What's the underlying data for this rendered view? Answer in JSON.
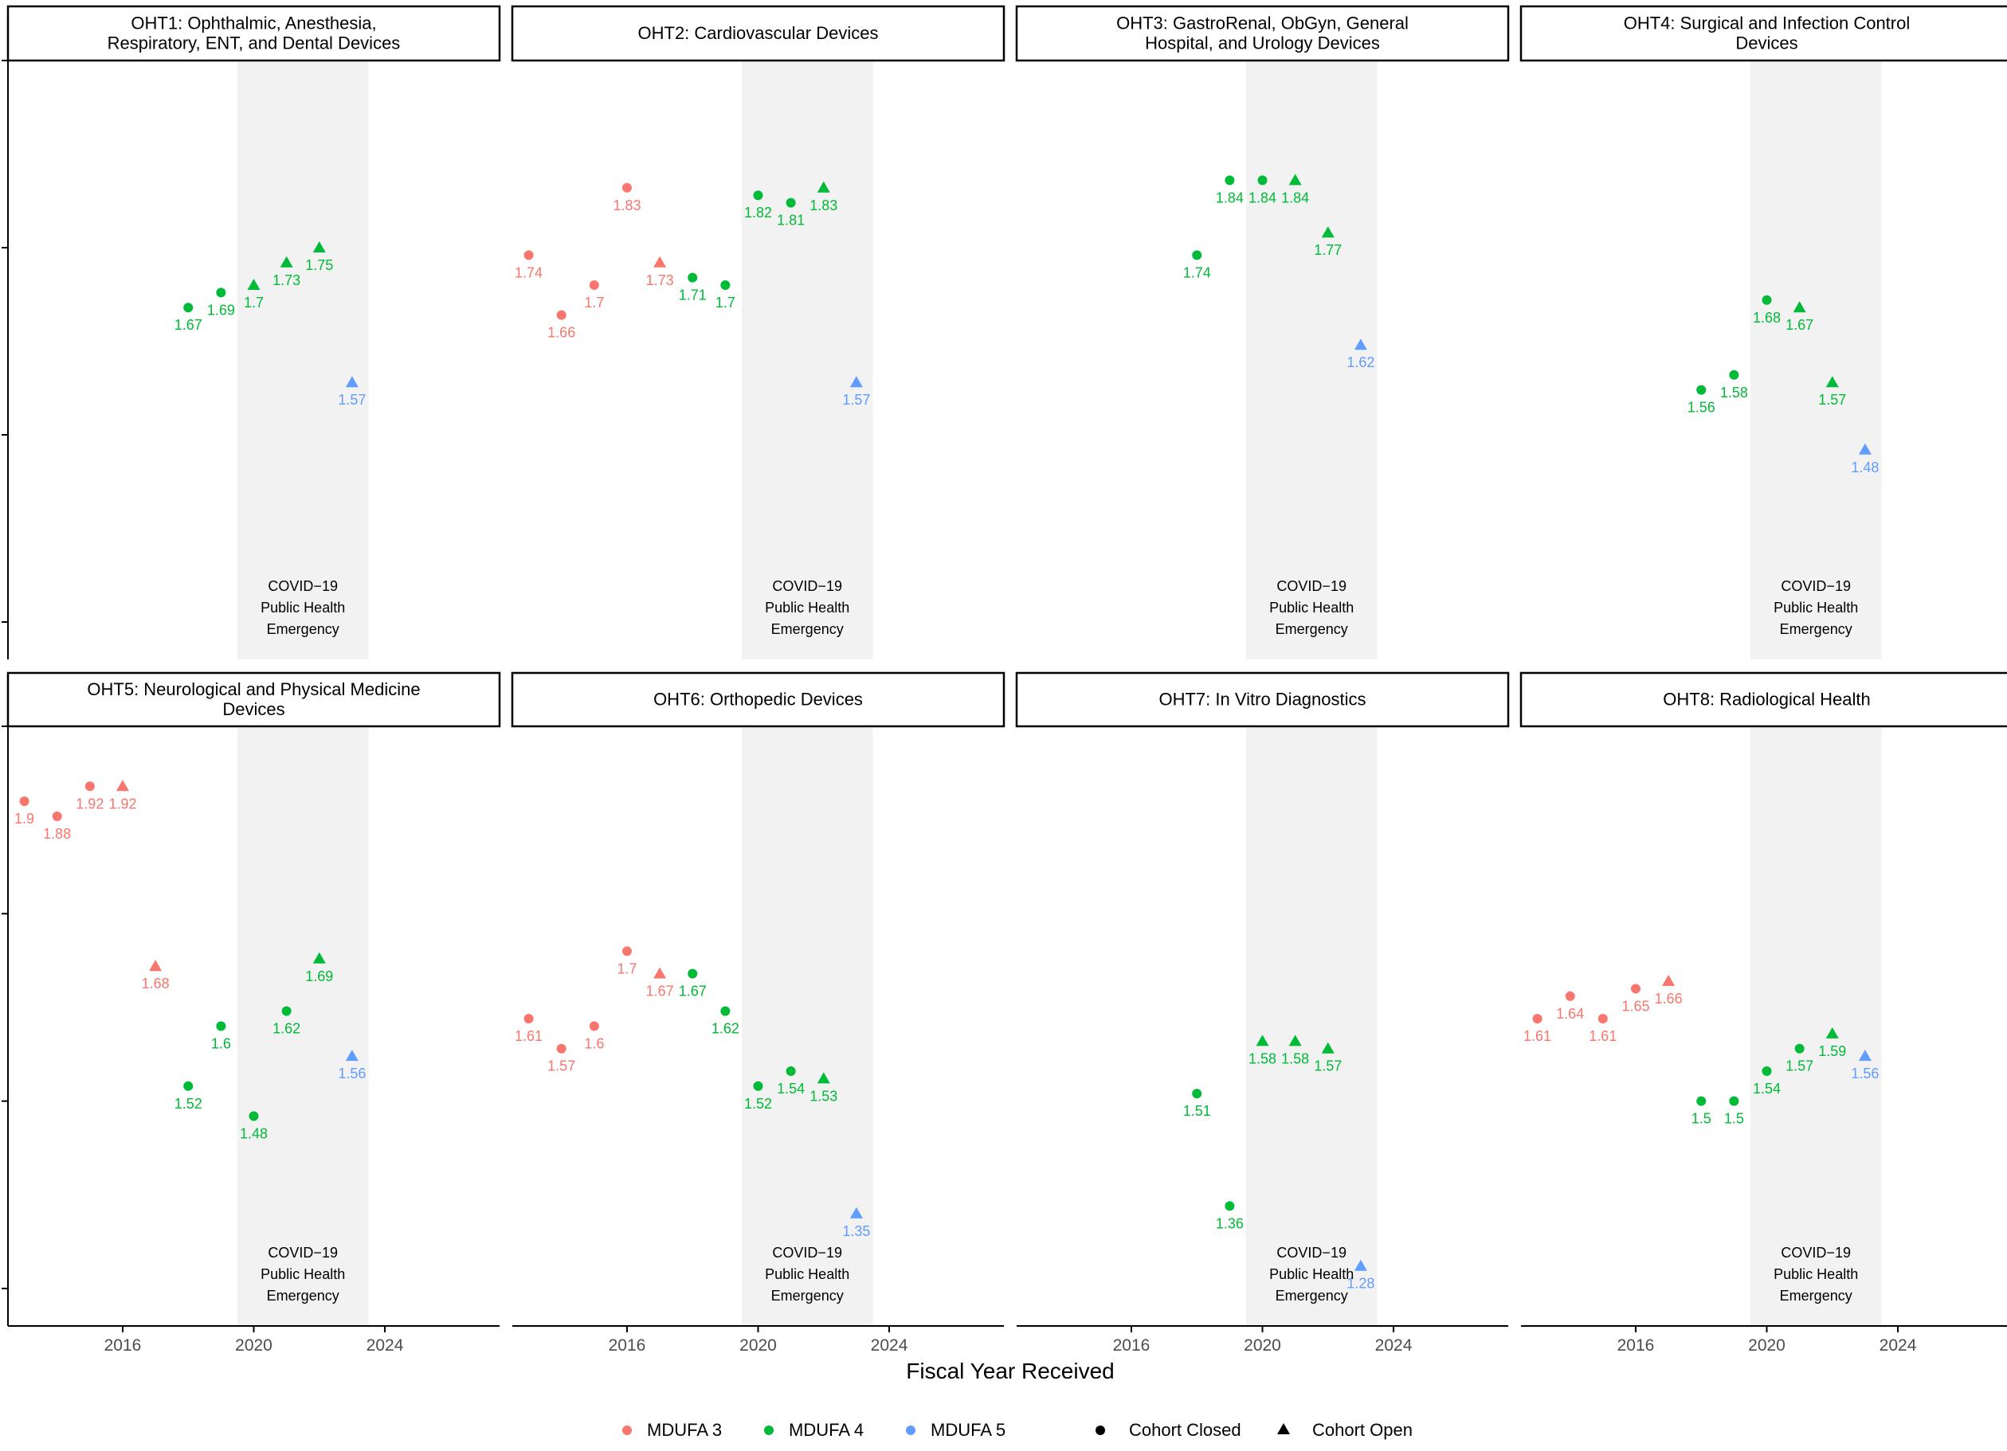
{
  "chart_data": {
    "type": "scatter",
    "title": "",
    "xlabel": "Fiscal Year Received",
    "ylabel": "",
    "xlim": [
      2012.5,
      2027.5
    ],
    "ylim": [
      1.2,
      2.0
    ],
    "x_ticks": [
      "2016",
      "2020",
      "2024"
    ],
    "shade_region": {
      "from": 2019.5,
      "to": 2023.5,
      "label": [
        "COVID−19",
        "Public Health",
        "Emergency"
      ]
    },
    "colors": {
      "MDUFA 3": "#F8766D",
      "MDUFA 4": "#00BA38",
      "MDUFA 5": "#619CFF",
      "shade": "#f2f2f2"
    },
    "legend": {
      "position": "bottom",
      "color_entries": [
        "MDUFA 3",
        "MDUFA 4",
        "MDUFA 5"
      ],
      "shape_entries": [
        "Cohort Closed",
        "Cohort Open"
      ]
    },
    "panels": [
      {
        "title": [
          "OHT1: Ophthalmic, Anesthesia,",
          "Respiratory, ENT, and Dental Devices"
        ],
        "points": [
          {
            "x": 2018,
            "y": 1.67,
            "label": "1.67",
            "group": "MDUFA 4",
            "shape": "circle"
          },
          {
            "x": 2019,
            "y": 1.69,
            "label": "1.69",
            "group": "MDUFA 4",
            "shape": "circle"
          },
          {
            "x": 2020,
            "y": 1.7,
            "label": "1.7",
            "group": "MDUFA 4",
            "shape": "triangle"
          },
          {
            "x": 2021,
            "y": 1.73,
            "label": "1.73",
            "group": "MDUFA 4",
            "shape": "triangle"
          },
          {
            "x": 2022,
            "y": 1.75,
            "label": "1.75",
            "group": "MDUFA 4",
            "shape": "triangle"
          },
          {
            "x": 2023,
            "y": 1.57,
            "label": "1.57",
            "group": "MDUFA 5",
            "shape": "triangle"
          }
        ]
      },
      {
        "title": [
          "OHT2: Cardiovascular Devices"
        ],
        "points": [
          {
            "x": 2013,
            "y": 1.74,
            "label": "1.74",
            "group": "MDUFA 3",
            "shape": "circle"
          },
          {
            "x": 2014,
            "y": 1.66,
            "label": "1.66",
            "group": "MDUFA 3",
            "shape": "circle"
          },
          {
            "x": 2015,
            "y": 1.7,
            "label": "1.7",
            "group": "MDUFA 3",
            "shape": "circle"
          },
          {
            "x": 2016,
            "y": 1.83,
            "label": "1.83",
            "group": "MDUFA 3",
            "shape": "circle"
          },
          {
            "x": 2017,
            "y": 1.73,
            "label": "1.73",
            "group": "MDUFA 3",
            "shape": "triangle"
          },
          {
            "x": 2018,
            "y": 1.71,
            "label": "1.71",
            "group": "MDUFA 4",
            "shape": "circle"
          },
          {
            "x": 2019,
            "y": 1.7,
            "label": "1.7",
            "group": "MDUFA 4",
            "shape": "circle"
          },
          {
            "x": 2020,
            "y": 1.82,
            "label": "1.82",
            "group": "MDUFA 4",
            "shape": "circle"
          },
          {
            "x": 2021,
            "y": 1.81,
            "label": "1.81",
            "group": "MDUFA 4",
            "shape": "circle"
          },
          {
            "x": 2022,
            "y": 1.83,
            "label": "1.83",
            "group": "MDUFA 4",
            "shape": "triangle"
          },
          {
            "x": 2023,
            "y": 1.57,
            "label": "1.57",
            "group": "MDUFA 5",
            "shape": "triangle"
          }
        ]
      },
      {
        "title": [
          "OHT3: GastroRenal, ObGyn, General",
          "Hospital, and Urology Devices"
        ],
        "points": [
          {
            "x": 2018,
            "y": 1.74,
            "label": "1.74",
            "group": "MDUFA 4",
            "shape": "circle"
          },
          {
            "x": 2019,
            "y": 1.84,
            "label": "1.84",
            "group": "MDUFA 4",
            "shape": "circle"
          },
          {
            "x": 2020,
            "y": 1.84,
            "label": "1.84",
            "group": "MDUFA 4",
            "shape": "circle"
          },
          {
            "x": 2021,
            "y": 1.84,
            "label": "1.84",
            "group": "MDUFA 4",
            "shape": "triangle"
          },
          {
            "x": 2022,
            "y": 1.77,
            "label": "1.77",
            "group": "MDUFA 4",
            "shape": "triangle"
          },
          {
            "x": 2023,
            "y": 1.62,
            "label": "1.62",
            "group": "MDUFA 5",
            "shape": "triangle"
          }
        ]
      },
      {
        "title": [
          "OHT4: Surgical and Infection Control",
          "Devices"
        ],
        "points": [
          {
            "x": 2018,
            "y": 1.56,
            "label": "1.56",
            "group": "MDUFA 4",
            "shape": "circle"
          },
          {
            "x": 2019,
            "y": 1.58,
            "label": "1.58",
            "group": "MDUFA 4",
            "shape": "circle"
          },
          {
            "x": 2020,
            "y": 1.68,
            "label": "1.68",
            "group": "MDUFA 4",
            "shape": "circle"
          },
          {
            "x": 2021,
            "y": 1.67,
            "label": "1.67",
            "group": "MDUFA 4",
            "shape": "triangle"
          },
          {
            "x": 2022,
            "y": 1.57,
            "label": "1.57",
            "group": "MDUFA 4",
            "shape": "triangle"
          },
          {
            "x": 2023,
            "y": 1.48,
            "label": "1.48",
            "group": "MDUFA 5",
            "shape": "triangle"
          }
        ]
      },
      {
        "title": [
          "OHT5: Neurological and Physical Medicine",
          "Devices"
        ],
        "points": [
          {
            "x": 2013,
            "y": 1.9,
            "label": "1.9",
            "group": "MDUFA 3",
            "shape": "circle"
          },
          {
            "x": 2014,
            "y": 1.88,
            "label": "1.88",
            "group": "MDUFA 3",
            "shape": "circle"
          },
          {
            "x": 2015,
            "y": 1.92,
            "label": "1.92",
            "group": "MDUFA 3",
            "shape": "circle"
          },
          {
            "x": 2016,
            "y": 1.92,
            "label": "1.92",
            "group": "MDUFA 3",
            "shape": "triangle"
          },
          {
            "x": 2017,
            "y": 1.68,
            "label": "1.68",
            "group": "MDUFA 3",
            "shape": "triangle"
          },
          {
            "x": 2018,
            "y": 1.52,
            "label": "1.52",
            "group": "MDUFA 4",
            "shape": "circle"
          },
          {
            "x": 2019,
            "y": 1.6,
            "label": "1.6",
            "group": "MDUFA 4",
            "shape": "circle"
          },
          {
            "x": 2020,
            "y": 1.48,
            "label": "1.48",
            "group": "MDUFA 4",
            "shape": "circle"
          },
          {
            "x": 2021,
            "y": 1.62,
            "label": "1.62",
            "group": "MDUFA 4",
            "shape": "circle"
          },
          {
            "x": 2022,
            "y": 1.69,
            "label": "1.69",
            "group": "MDUFA 4",
            "shape": "triangle"
          },
          {
            "x": 2023,
            "y": 1.56,
            "label": "1.56",
            "group": "MDUFA 5",
            "shape": "triangle"
          }
        ]
      },
      {
        "title": [
          "OHT6: Orthopedic Devices"
        ],
        "points": [
          {
            "x": 2013,
            "y": 1.61,
            "label": "1.61",
            "group": "MDUFA 3",
            "shape": "circle"
          },
          {
            "x": 2014,
            "y": 1.57,
            "label": "1.57",
            "group": "MDUFA 3",
            "shape": "circle"
          },
          {
            "x": 2015,
            "y": 1.6,
            "label": "1.6",
            "group": "MDUFA 3",
            "shape": "circle"
          },
          {
            "x": 2016,
            "y": 1.7,
            "label": "1.7",
            "group": "MDUFA 3",
            "shape": "circle"
          },
          {
            "x": 2017,
            "y": 1.67,
            "label": "1.67",
            "group": "MDUFA 3",
            "shape": "triangle"
          },
          {
            "x": 2018,
            "y": 1.67,
            "label": "1.67",
            "group": "MDUFA 4",
            "shape": "circle"
          },
          {
            "x": 2019,
            "y": 1.62,
            "label": "1.62",
            "group": "MDUFA 4",
            "shape": "circle"
          },
          {
            "x": 2020,
            "y": 1.52,
            "label": "1.52",
            "group": "MDUFA 4",
            "shape": "circle"
          },
          {
            "x": 2021,
            "y": 1.54,
            "label": "1.54",
            "group": "MDUFA 4",
            "shape": "circle"
          },
          {
            "x": 2022,
            "y": 1.53,
            "label": "1.53",
            "group": "MDUFA 4",
            "shape": "triangle"
          },
          {
            "x": 2023,
            "y": 1.35,
            "label": "1.35",
            "group": "MDUFA 5",
            "shape": "triangle"
          }
        ]
      },
      {
        "title": [
          "OHT7: In Vitro Diagnostics"
        ],
        "points": [
          {
            "x": 2018,
            "y": 1.51,
            "label": "1.51",
            "group": "MDUFA 4",
            "shape": "circle"
          },
          {
            "x": 2019,
            "y": 1.36,
            "label": "1.36",
            "group": "MDUFA 4",
            "shape": "circle"
          },
          {
            "x": 2020,
            "y": 1.58,
            "label": "1.58",
            "group": "MDUFA 4",
            "shape": "triangle"
          },
          {
            "x": 2021,
            "y": 1.58,
            "label": "1.58",
            "group": "MDUFA 4",
            "shape": "triangle"
          },
          {
            "x": 2022,
            "y": 1.57,
            "label": "1.57",
            "group": "MDUFA 4",
            "shape": "triangle"
          },
          {
            "x": 2023,
            "y": 1.28,
            "label": "1.28",
            "group": "MDUFA 5",
            "shape": "triangle"
          }
        ]
      },
      {
        "title": [
          "OHT8: Radiological Health"
        ],
        "points": [
          {
            "x": 2013,
            "y": 1.61,
            "label": "1.61",
            "group": "MDUFA 3",
            "shape": "circle"
          },
          {
            "x": 2014,
            "y": 1.64,
            "label": "1.64",
            "group": "MDUFA 3",
            "shape": "circle"
          },
          {
            "x": 2015,
            "y": 1.61,
            "label": "1.61",
            "group": "MDUFA 3",
            "shape": "circle"
          },
          {
            "x": 2016,
            "y": 1.65,
            "label": "1.65",
            "group": "MDUFA 3",
            "shape": "circle"
          },
          {
            "x": 2017,
            "y": 1.66,
            "label": "1.66",
            "group": "MDUFA 3",
            "shape": "triangle"
          },
          {
            "x": 2018,
            "y": 1.5,
            "label": "1.5",
            "group": "MDUFA 4",
            "shape": "circle"
          },
          {
            "x": 2019,
            "y": 1.5,
            "label": "1.5",
            "group": "MDUFA 4",
            "shape": "circle"
          },
          {
            "x": 2020,
            "y": 1.54,
            "label": "1.54",
            "group": "MDUFA 4",
            "shape": "circle"
          },
          {
            "x": 2021,
            "y": 1.57,
            "label": "1.57",
            "group": "MDUFA 4",
            "shape": "circle"
          },
          {
            "x": 2022,
            "y": 1.59,
            "label": "1.59",
            "group": "MDUFA 4",
            "shape": "triangle"
          },
          {
            "x": 2023,
            "y": 1.56,
            "label": "1.56",
            "group": "MDUFA 5",
            "shape": "triangle"
          }
        ]
      }
    ]
  }
}
